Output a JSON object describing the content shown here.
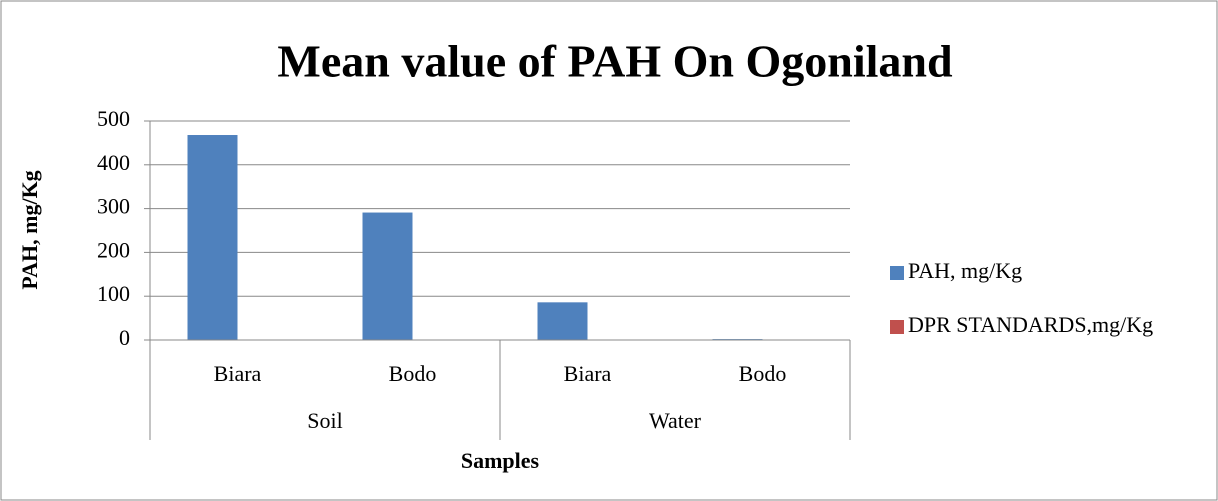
{
  "chart_data": {
    "type": "bar",
    "title": "Mean value of PAH On Ogoniland",
    "x_label": "Samples",
    "y_label": "PAH, mg/Kg",
    "categories": [
      "Biara",
      "Bodo",
      "Biara",
      "Bodo"
    ],
    "groups": [
      "Soil",
      "Water"
    ],
    "series": [
      {
        "name": "PAH, mg/Kg",
        "color": "#4f81bd",
        "values": [
          468,
          291,
          86,
          2
        ]
      },
      {
        "name": "DPR STANDARDS,mg/Kg",
        "color": "#c0504d",
        "values": [
          0,
          0,
          0,
          0
        ]
      }
    ],
    "ylim": [
      0,
      500
    ],
    "yticks": [
      0,
      100,
      200,
      300,
      400,
      500
    ],
    "grid": true,
    "legend": "right"
  }
}
